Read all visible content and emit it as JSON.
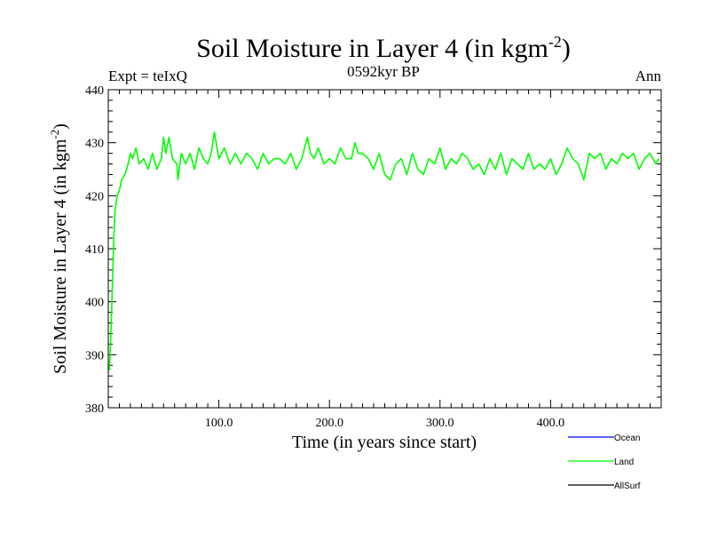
{
  "chart_data": {
    "type": "line",
    "title": "Soil Moisture in Layer 4 (in kgm",
    "title_sup": "-2",
    "title_close": ")",
    "subtitle_left": "Expt = teIxQ",
    "subtitle_center": "0592kyr BP",
    "subtitle_right": "Ann",
    "xlabel": "Time (in years since start)",
    "ylabel": "Soil Moisture in Layer 4 (in kgm",
    "ylabel_sup": "-2",
    "ylabel_close": ")",
    "xlim": [
      0,
      500
    ],
    "ylim": [
      380,
      440
    ],
    "xticks": [
      100,
      200,
      300,
      400
    ],
    "xtick_labels": [
      "100.0",
      "200.0",
      "300.0",
      "400.0"
    ],
    "yticks": [
      380,
      390,
      400,
      410,
      420,
      430,
      440
    ],
    "ytick_labels": [
      "380",
      "390",
      "400",
      "410",
      "420",
      "430",
      "440"
    ],
    "legend": [
      {
        "name": "Ocean",
        "color": "#0000ff"
      },
      {
        "name": "Land",
        "color": "#00ff00"
      },
      {
        "name": "AllSurf",
        "color": "#000000"
      }
    ],
    "series": [
      {
        "name": "Land",
        "color": "#00ff00",
        "x": [
          1,
          2,
          3,
          4,
          5,
          6,
          8,
          10,
          12,
          15,
          18,
          20,
          22,
          25,
          28,
          32,
          36,
          40,
          44,
          48,
          50,
          52,
          55,
          58,
          62,
          63,
          66,
          70,
          74,
          78,
          82,
          86,
          90,
          93,
          96,
          100,
          105,
          110,
          115,
          120,
          125,
          130,
          135,
          140,
          145,
          150,
          155,
          160,
          165,
          170,
          175,
          180,
          183,
          186,
          190,
          195,
          200,
          205,
          210,
          215,
          220,
          223,
          226,
          230,
          235,
          240,
          245,
          250,
          255,
          260,
          265,
          270,
          275,
          280,
          285,
          290,
          295,
          300,
          305,
          310,
          315,
          320,
          325,
          330,
          335,
          340,
          345,
          350,
          355,
          360,
          365,
          370,
          375,
          380,
          385,
          390,
          395,
          400,
          405,
          410,
          415,
          420,
          425,
          430,
          435,
          440,
          445,
          450,
          455,
          460,
          465,
          470,
          475,
          480,
          485,
          490,
          495,
          498
        ],
        "values": [
          387,
          392,
          398,
          405,
          412,
          417,
          420,
          421,
          423,
          424,
          426,
          428,
          427,
          429,
          426,
          427,
          425,
          428,
          425,
          427,
          431,
          428,
          431,
          427,
          426,
          423,
          428,
          426,
          428,
          425,
          429,
          427,
          426,
          428,
          432,
          427,
          429,
          426,
          428,
          426,
          428,
          427,
          425,
          428,
          426,
          427,
          427,
          426,
          428,
          425,
          427,
          431,
          428,
          427,
          429,
          426,
          427,
          426,
          429,
          427,
          427,
          430,
          428,
          428,
          427,
          425,
          428,
          424,
          423,
          426,
          427,
          424,
          428,
          425,
          424,
          427,
          426,
          429,
          425,
          427,
          426,
          428,
          427,
          425,
          426,
          424,
          427,
          425,
          428,
          424,
          427,
          426,
          425,
          428,
          425,
          426,
          425,
          427,
          424,
          426,
          429,
          427,
          426,
          423,
          428,
          427,
          428,
          425,
          427,
          426,
          428,
          427,
          428,
          425,
          427,
          428,
          426,
          427
        ]
      }
    ]
  }
}
